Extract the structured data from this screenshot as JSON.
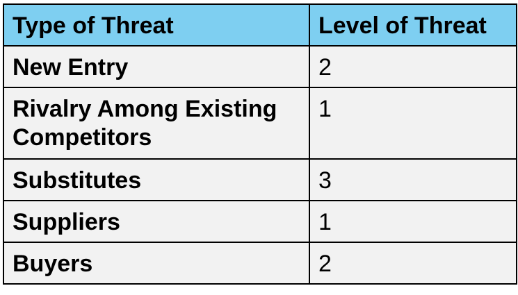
{
  "table": {
    "header": {
      "type_label": "Type of Threat",
      "level_label": "Level of Threat"
    },
    "rows": [
      {
        "type": "New Entry",
        "level": "2"
      },
      {
        "type": "Rivalry Among Existing Competitors",
        "level": "1"
      },
      {
        "type": "Substitutes",
        "level": "3"
      },
      {
        "type": "Suppliers",
        "level": "1"
      },
      {
        "type": "Buyers",
        "level": "2"
      }
    ]
  },
  "colors": {
    "header_background": "#7ecff1",
    "body_background": "#f2f2f2",
    "border": "#000000"
  }
}
